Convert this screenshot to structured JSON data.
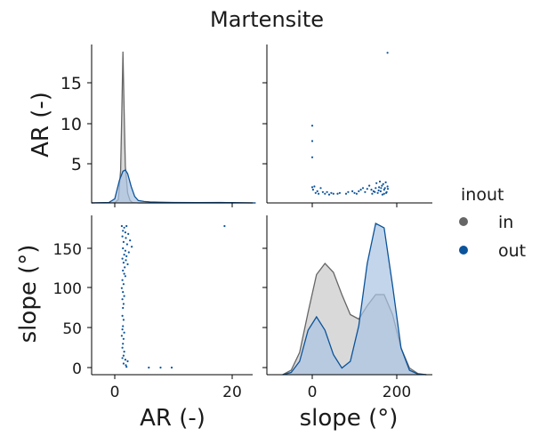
{
  "title": "Martensite",
  "colors": {
    "in": "#666666",
    "out": "#0b539a",
    "in_fill": "#c9c9c9",
    "out_fill": "#a9c3e2"
  },
  "legend": {
    "title": "inout",
    "placement": "right",
    "entries": [
      {
        "label": "in",
        "color": "#666666"
      },
      {
        "label": "out",
        "color": "#0b539a"
      }
    ]
  },
  "chart_data": [
    {
      "panel": "AR-kde",
      "type": "area",
      "xlabel": "",
      "ylabel": "AR (-)",
      "yticks": [
        5,
        10,
        15
      ],
      "series": [
        {
          "name": "in",
          "fill": true,
          "x": [
            -4,
            0,
            0.6,
            1.0,
            1.2,
            1.4,
            1.6,
            1.8,
            2.2,
            2.6,
            3.0,
            4.0,
            6,
            8,
            12,
            16,
            20,
            24
          ],
          "y": [
            0,
            0.02,
            0.4,
            4.0,
            11.0,
            18.6,
            11.0,
            4.5,
            1.2,
            0.3,
            0.05,
            0,
            0,
            0,
            0,
            0,
            0,
            0
          ]
        },
        {
          "name": "out",
          "fill": true,
          "x": [
            -4,
            -1,
            0,
            0.8,
            1.4,
            1.8,
            2.2,
            2.8,
            3.4,
            4,
            5,
            6,
            8,
            10,
            14,
            18,
            20,
            24
          ],
          "y": [
            0,
            0.05,
            0.5,
            2.8,
            3.9,
            4.05,
            3.6,
            2.0,
            0.8,
            0.3,
            0.18,
            0.12,
            0.08,
            0.05,
            0.04,
            0.05,
            0.03,
            0
          ]
        }
      ]
    },
    {
      "panel": "slope-vs-AR",
      "type": "scatter",
      "series": [
        {
          "name": "out",
          "points": [
            [
              0,
              9.7
            ],
            [
              0,
              7.8
            ],
            [
              0,
              5.8
            ],
            [
              0,
              2.1
            ],
            [
              2,
              1.8
            ],
            [
              5,
              2.2
            ],
            [
              8,
              1.4
            ],
            [
              12,
              1.6
            ],
            [
              15,
              1.3
            ],
            [
              20,
              2.0
            ],
            [
              25,
              1.5
            ],
            [
              30,
              1.3
            ],
            [
              35,
              1.5
            ],
            [
              40,
              1.2
            ],
            [
              45,
              1.4
            ],
            [
              50,
              1.3
            ],
            [
              60,
              1.3
            ],
            [
              65,
              1.4
            ],
            [
              80,
              1.3
            ],
            [
              85,
              1.5
            ],
            [
              95,
              1.6
            ],
            [
              100,
              1.4
            ],
            [
              105,
              1.3
            ],
            [
              110,
              1.6
            ],
            [
              115,
              1.8
            ],
            [
              120,
              2.0
            ],
            [
              125,
              1.5
            ],
            [
              130,
              1.9
            ],
            [
              135,
              2.3
            ],
            [
              140,
              1.8
            ],
            [
              145,
              1.6
            ],
            [
              150,
              2.0
            ],
            [
              152,
              2.6
            ],
            [
              155,
              1.4
            ],
            [
              158,
              2.1
            ],
            [
              160,
              2.8
            ],
            [
              162,
              1.6
            ],
            [
              165,
              2.3
            ],
            [
              166,
              1.2
            ],
            [
              168,
              2.5
            ],
            [
              170,
              1.8
            ],
            [
              172,
              2.0
            ],
            [
              174,
              2.7
            ],
            [
              176,
              1.5
            ],
            [
              178,
              2.2
            ],
            [
              179,
              1.9
            ],
            [
              175,
              1.4
            ],
            [
              170,
              1.3
            ],
            [
              163,
              2.0
            ],
            [
              157,
              1.7
            ],
            [
              148,
              1.5
            ],
            [
              142,
              1.3
            ],
            [
              178,
              18.7
            ]
          ]
        }
      ]
    },
    {
      "panel": "AR-vs-slope",
      "type": "scatter",
      "xlabel": "AR (-)",
      "ylabel": "slope (°)",
      "xticks": [
        0,
        20
      ],
      "yticks": [
        0,
        50,
        100,
        150
      ],
      "series": [
        {
          "name": "out",
          "points": [
            [
              1.2,
              178
            ],
            [
              1.6,
              176
            ],
            [
              2.0,
              178
            ],
            [
              1.4,
              172
            ],
            [
              1.8,
              170
            ],
            [
              2.3,
              168
            ],
            [
              1.3,
              165
            ],
            [
              1.9,
              163
            ],
            [
              2.6,
              160
            ],
            [
              1.5,
              158
            ],
            [
              2.1,
              155
            ],
            [
              2.9,
              152
            ],
            [
              1.4,
              150
            ],
            [
              1.8,
              147
            ],
            [
              2.4,
              145
            ],
            [
              1.6,
              142
            ],
            [
              2.0,
              140
            ],
            [
              1.3,
              137
            ],
            [
              1.9,
              135
            ],
            [
              1.5,
              132
            ],
            [
              2.2,
              130
            ],
            [
              1.7,
              126
            ],
            [
              1.4,
              122
            ],
            [
              1.6,
              118
            ],
            [
              1.8,
              115
            ],
            [
              1.3,
              110
            ],
            [
              1.5,
              105
            ],
            [
              1.2,
              100
            ],
            [
              1.4,
              95
            ],
            [
              1.6,
              90
            ],
            [
              1.3,
              86
            ],
            [
              1.5,
              80
            ],
            [
              1.4,
              75
            ],
            [
              1.3,
              65
            ],
            [
              1.5,
              60
            ],
            [
              1.4,
              52
            ],
            [
              1.3,
              48
            ],
            [
              1.6,
              44
            ],
            [
              1.2,
              40
            ],
            [
              1.5,
              36
            ],
            [
              1.4,
              30
            ],
            [
              1.3,
              25
            ],
            [
              1.6,
              20
            ],
            [
              1.5,
              15
            ],
            [
              1.3,
              12
            ],
            [
              1.8,
              10
            ],
            [
              2.2,
              8
            ],
            [
              1.5,
              5
            ],
            [
              1.9,
              3
            ],
            [
              2.0,
              1
            ],
            [
              5.8,
              0
            ],
            [
              7.8,
              0
            ],
            [
              9.7,
              0
            ],
            [
              18.7,
              178
            ]
          ]
        }
      ]
    },
    {
      "panel": "slope-kde",
      "type": "area",
      "xlabel": "slope (°)",
      "ylabel": "",
      "xticks": [
        0,
        200
      ],
      "series": [
        {
          "name": "in",
          "fill": true,
          "x": [
            -70,
            -50,
            -30,
            -10,
            10,
            30,
            50,
            70,
            90,
            110,
            130,
            150,
            170,
            190,
            210,
            230,
            250,
            270
          ],
          "y": [
            0,
            0.02,
            0.1,
            0.28,
            0.45,
            0.5,
            0.46,
            0.36,
            0.27,
            0.25,
            0.31,
            0.36,
            0.36,
            0.27,
            0.12,
            0.03,
            0.005,
            0
          ]
        },
        {
          "name": "out",
          "fill": true,
          "x": [
            -70,
            -50,
            -30,
            -10,
            10,
            30,
            50,
            70,
            90,
            110,
            130,
            150,
            170,
            190,
            210,
            230,
            250,
            270
          ],
          "y": [
            0,
            0.01,
            0.06,
            0.2,
            0.26,
            0.2,
            0.09,
            0.03,
            0.06,
            0.22,
            0.5,
            0.68,
            0.66,
            0.4,
            0.12,
            0.02,
            0.003,
            0
          ]
        }
      ]
    }
  ]
}
